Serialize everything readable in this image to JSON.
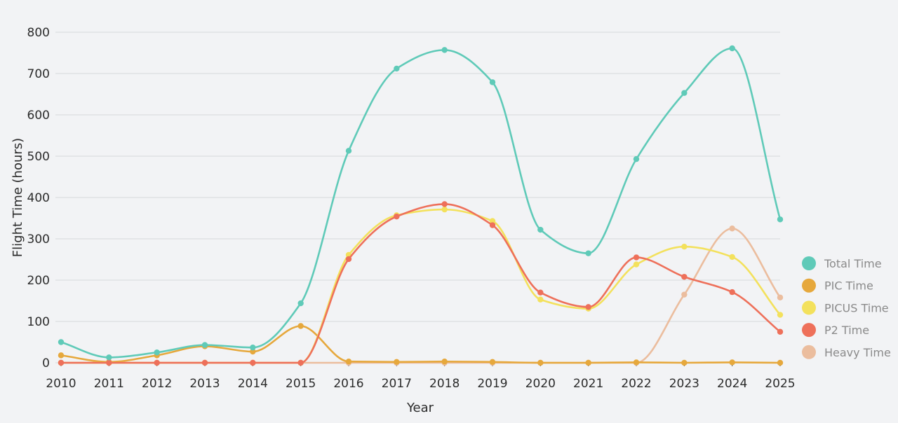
{
  "chart_data": {
    "type": "line",
    "smooth": true,
    "title": "",
    "xlabel": "Year",
    "ylabel": "Flight Time (hours)",
    "ylim": [
      0,
      800
    ],
    "yticks": [
      0,
      100,
      200,
      300,
      400,
      500,
      600,
      700,
      800
    ],
    "grid": "horizontal",
    "legend_position": "right",
    "x": [
      "2010",
      "2011",
      "2012",
      "2013",
      "2014",
      "2015",
      "2016",
      "2017",
      "2018",
      "2019",
      "2020",
      "2021",
      "2022",
      "2023",
      "2024",
      "2025"
    ],
    "series": [
      {
        "name": "Total Time",
        "color": "#5fcab8",
        "values": [
          50,
          13,
          25,
          43,
          37,
          144,
          513,
          712,
          757,
          679,
          322,
          265,
          493,
          653,
          761,
          347
        ]
      },
      {
        "name": "PIC Time",
        "color": "#e6a83c",
        "values": [
          18,
          2,
          18,
          40,
          27,
          89,
          3,
          2,
          3,
          2,
          0,
          0,
          1,
          0,
          1,
          0
        ]
      },
      {
        "name": "PICUS Time",
        "color": "#f3e15c",
        "values": [
          0,
          0,
          0,
          0,
          0,
          0,
          261,
          357,
          371,
          343,
          153,
          131,
          238,
          281,
          256,
          116
        ]
      },
      {
        "name": "P2 Time",
        "color": "#ee705a",
        "values": [
          0,
          0,
          0,
          0,
          0,
          0,
          251,
          354,
          384,
          333,
          170,
          135,
          255,
          208,
          171,
          75
        ]
      },
      {
        "name": "Heavy Time",
        "color": "#ebbd9e",
        "values": [
          0,
          0,
          0,
          0,
          0,
          0,
          0,
          0,
          0,
          0,
          0,
          0,
          0,
          165,
          325,
          158
        ]
      }
    ]
  }
}
